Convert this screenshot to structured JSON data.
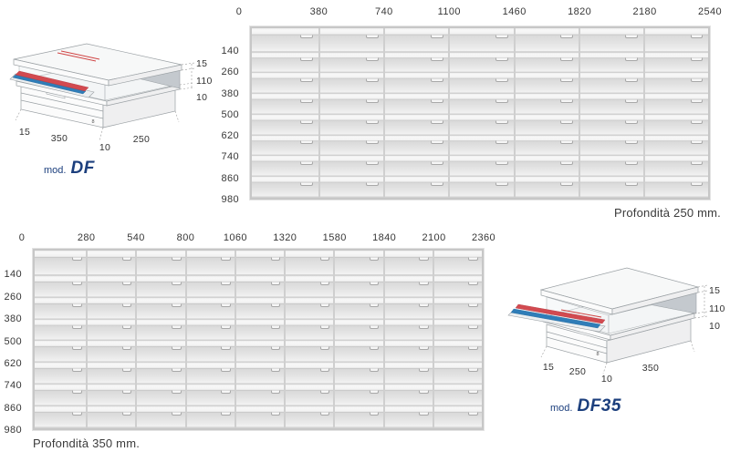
{
  "colors": {
    "accent_blue": "#1c3f7d",
    "label_text": "#373737",
    "magazine_red": "#d24a50",
    "magazine_blue": "#2f7db8"
  },
  "grids": [
    {
      "col_headers": [
        "0",
        "380",
        "740",
        "1100",
        "1460",
        "1820",
        "2180",
        "2540"
      ],
      "row_labels": [
        "140",
        "260",
        "380",
        "500",
        "620",
        "740",
        "860",
        "980"
      ],
      "caption": "Profondità 250 mm."
    },
    {
      "col_headers": [
        "0",
        "280",
        "540",
        "800",
        "1060",
        "1320",
        "1580",
        "1840",
        "2100",
        "2360"
      ],
      "row_labels": [
        "140",
        "260",
        "380",
        "500",
        "620",
        "740",
        "860",
        "980"
      ],
      "caption": "Profondità 350 mm."
    }
  ],
  "diagrams": [
    {
      "label_prefix": "mod.",
      "label_name": "DF",
      "dim_top": "15",
      "dim_mid": "110",
      "dim_low": "10",
      "dim_foot": "15",
      "dim_front": "350",
      "dim_gap": "10",
      "dim_side": "250",
      "dim_panel": "8"
    },
    {
      "label_prefix": "mod.",
      "label_name": "DF35",
      "dim_top": "15",
      "dim_mid": "110",
      "dim_low": "10",
      "dim_foot": "15",
      "dim_front": "250",
      "dim_gap": "10",
      "dim_side": "350",
      "dim_panel": "8"
    }
  ]
}
